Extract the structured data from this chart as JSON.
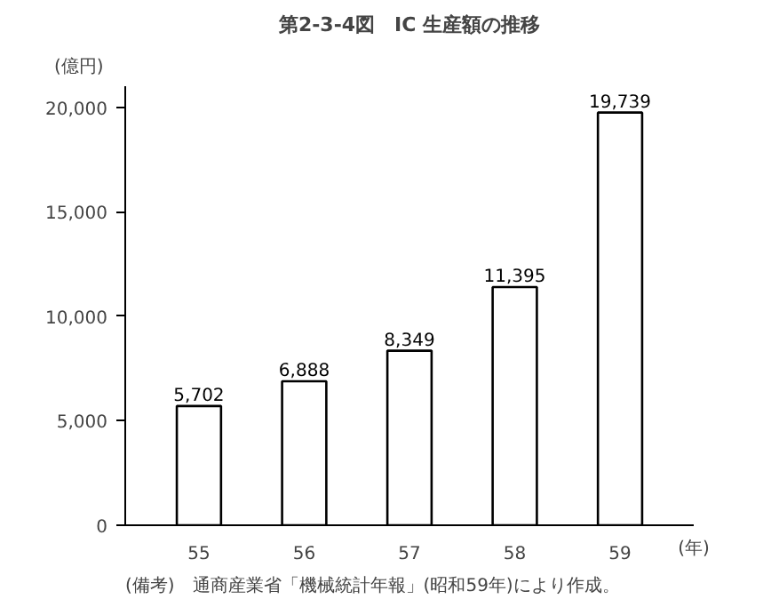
{
  "chart_data": {
    "type": "bar",
    "title": "第2-3-4図　IC 生産額の推移",
    "ylabel": "(億円)",
    "xlabel": "(年)",
    "categories": [
      "55",
      "56",
      "57",
      "58",
      "59"
    ],
    "values": [
      5702,
      6888,
      8349,
      11395,
      19739
    ],
    "value_labels": [
      "5,702",
      "6,888",
      "8,349",
      "11,395",
      "19,739"
    ],
    "color": "#ffffff",
    "ylim": [
      0,
      21000
    ],
    "yticks": [
      {
        "value": 0,
        "label": "0"
      },
      {
        "value": 5000,
        "label": "5,000"
      },
      {
        "value": 10000,
        "label": "10,000"
      },
      {
        "value": 15000,
        "label": "15,000"
      },
      {
        "value": 20000,
        "label": "20,000"
      }
    ],
    "annotations": [
      "(備考)　通商産業省「機械統計年報」(昭和59年)により作成。"
    ],
    "grid": false
  }
}
